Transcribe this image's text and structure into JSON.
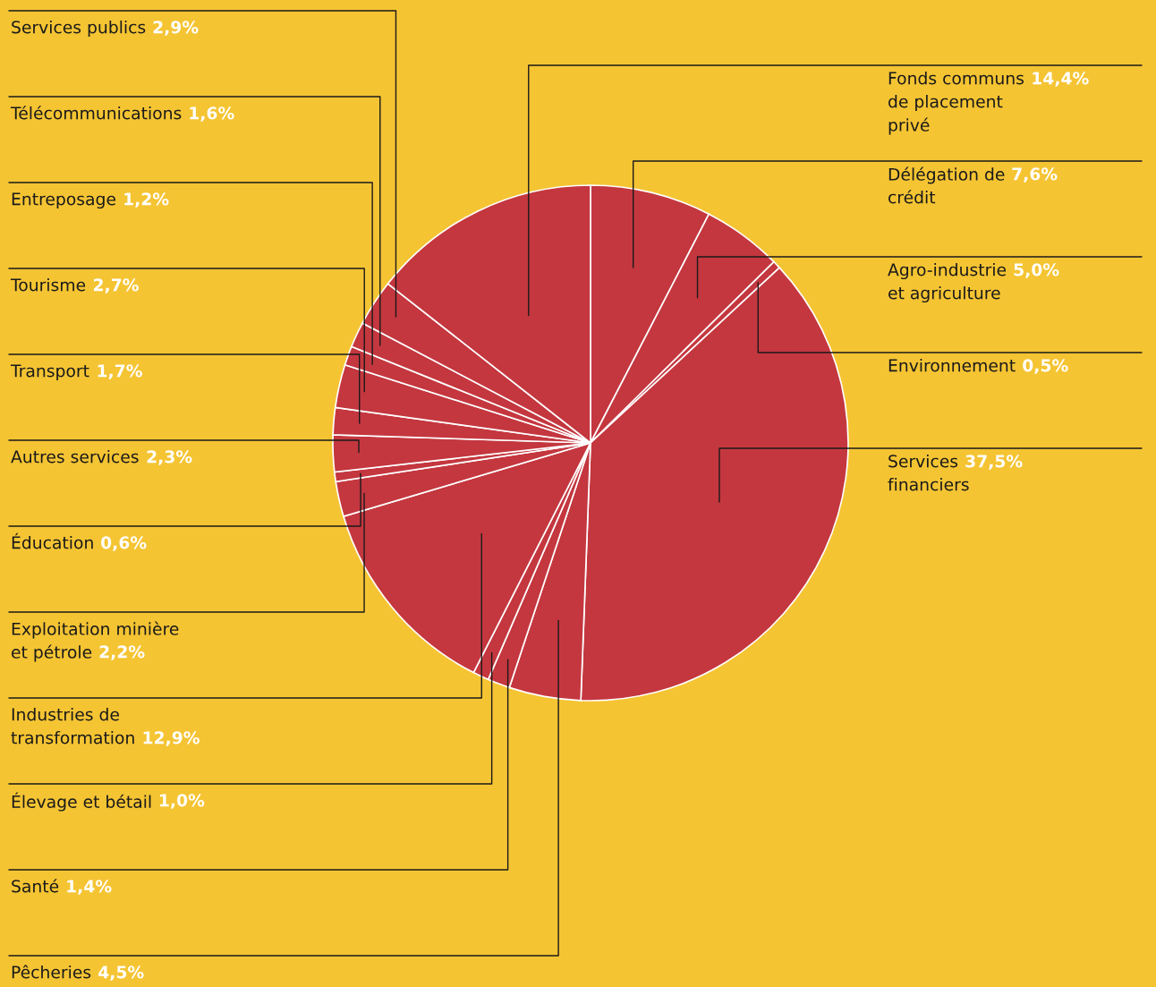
{
  "chart_data": {
    "type": "pie",
    "categories": [
      "Délégation de\ncrédit",
      "Agro-industrie\net agriculture",
      "Environnement",
      "Services\nfinanciers",
      "Pêcheries",
      "Santé",
      "Élevage et bétail",
      "Industries de\ntransformation",
      "Exploitation minière\net pétrole",
      "Éducation",
      "Autres services",
      "Transport",
      "Tourisme",
      "Entreposage",
      "Télécommunications",
      "Services publics",
      "Fonds communs\nde placement\nprivé"
    ],
    "values": [
      7.6,
      5.0,
      0.5,
      37.5,
      4.5,
      1.4,
      1.0,
      12.9,
      2.2,
      0.6,
      2.3,
      1.7,
      2.7,
      1.2,
      1.6,
      2.9,
      14.4
    ],
    "value_labels": [
      "7,6%",
      "5,0%",
      "0,5%",
      "37,5%",
      "4,5%",
      "1,4%",
      "1,0%",
      "12,9%",
      "2,2%",
      "0,6%",
      "2,3%",
      "1,7%",
      "2,7%",
      "1,2%",
      "1,6%",
      "2,9%",
      "14,4%"
    ],
    "colors": [
      "#c4373f",
      "#c4373f",
      "#c4373f",
      "#c4373f",
      "#c4373f",
      "#c4373f",
      "#c4373f",
      "#c4373f",
      "#c4373f",
      "#c4373f",
      "#c4373f",
      "#c4373f",
      "#c4373f",
      "#c4373f",
      "#c4373f",
      "#c4373f",
      "#c4373f"
    ]
  }
}
